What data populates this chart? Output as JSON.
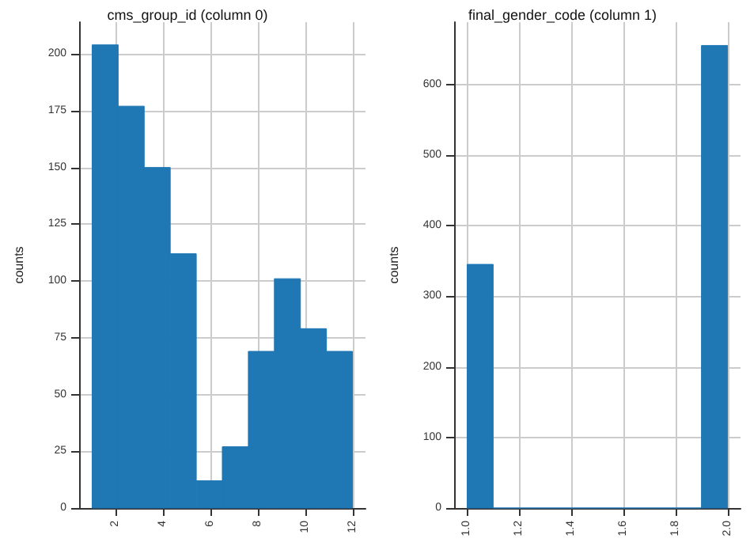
{
  "chart_data": [
    {
      "type": "histogram",
      "title": "cms_group_id (column 0)",
      "ylabel": "counts",
      "color": "#1f77b4",
      "grid": true,
      "bins": [
        1,
        2.1,
        3.2,
        4.3,
        5.4,
        6.5,
        7.6,
        8.7,
        9.8,
        10.9,
        12
      ],
      "values": [
        204,
        177,
        150,
        112,
        12,
        27,
        69,
        101,
        79,
        69
      ],
      "xlim": [
        0.45,
        12.55
      ],
      "xticks": [
        2,
        4,
        6,
        8,
        10,
        12
      ],
      "ylim": [
        0,
        214
      ],
      "yticks": [
        0,
        25,
        50,
        75,
        100,
        125,
        150,
        175,
        200
      ]
    },
    {
      "type": "histogram",
      "title": "final_gender_code (column 1)",
      "ylabel": "counts",
      "color": "#1f77b4",
      "grid": true,
      "bins": [
        1,
        1.1,
        1.2,
        1.3,
        1.4,
        1.5,
        1.6,
        1.7,
        1.8,
        1.9,
        2
      ],
      "values": [
        345,
        0,
        0,
        0,
        0,
        0,
        0,
        0,
        0,
        655
      ],
      "xlim": [
        0.95,
        2.05
      ],
      "xticks": [
        {
          "value": 1,
          "label": "1.0"
        },
        {
          "value": 1.2,
          "label": "1.2"
        },
        {
          "value": 1.4,
          "label": "1.4"
        },
        {
          "value": 1.6,
          "label": "1.6"
        },
        {
          "value": 1.8,
          "label": "1.8"
        },
        {
          "value": 2,
          "label": "2.0"
        }
      ],
      "ylim": [
        0,
        688
      ],
      "yticks": [
        0,
        100,
        200,
        300,
        400,
        500,
        600
      ]
    }
  ]
}
